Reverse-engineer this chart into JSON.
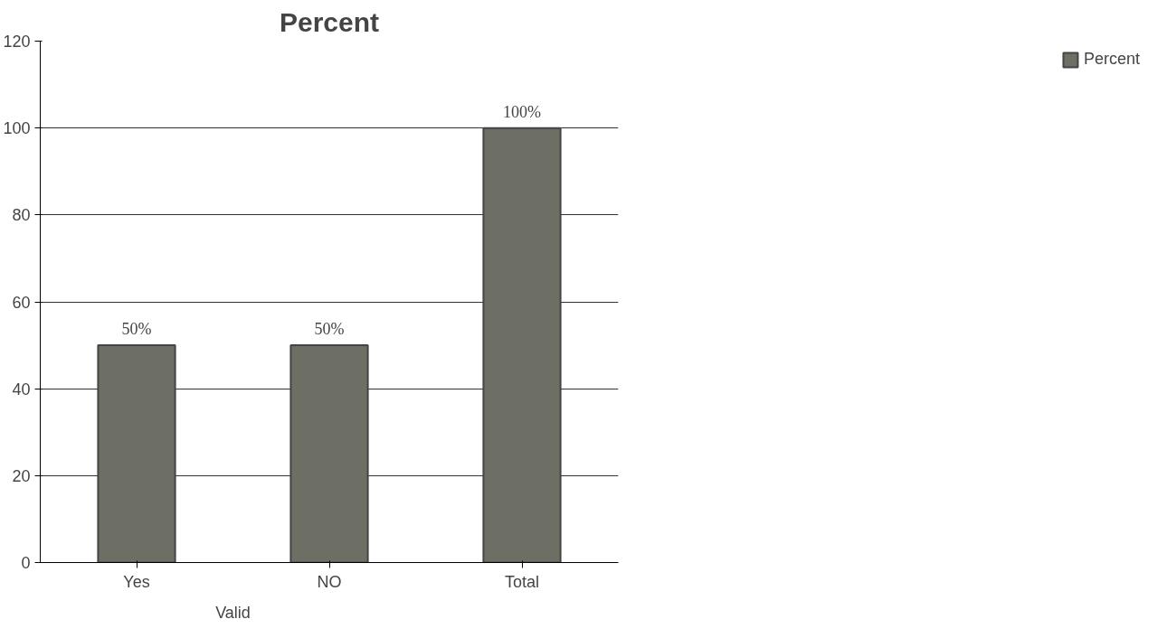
{
  "chart_data": {
    "type": "bar",
    "title": "Percent",
    "categories": [
      "Yes",
      "NO",
      "Total"
    ],
    "series": [
      {
        "name": "Percent",
        "color": "#6e6f64",
        "values": [
          50,
          50,
          100
        ],
        "value_labels": [
          "50%",
          "50%",
          "100%"
        ]
      }
    ],
    "ylim": [
      0,
      120
    ],
    "yticks": [
      0,
      20,
      40,
      60,
      80,
      100,
      120
    ],
    "grid": "y",
    "legend": "right",
    "annotations": [
      "Valid"
    ]
  }
}
